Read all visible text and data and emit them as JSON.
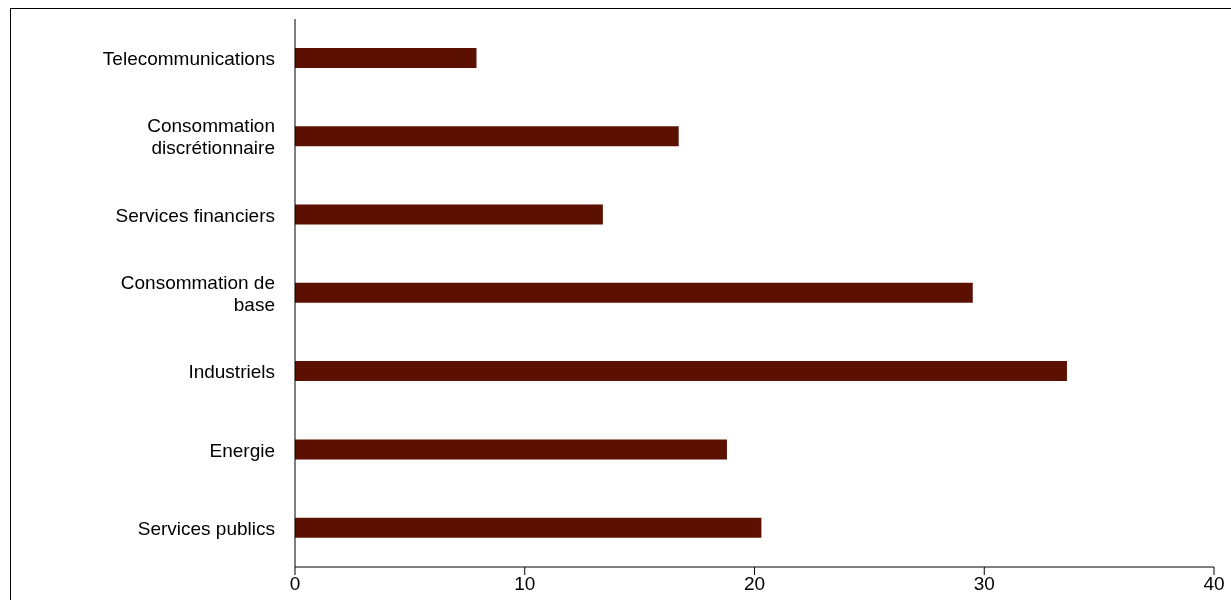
{
  "chart_data": {
    "type": "bar",
    "orientation": "horizontal",
    "categories": [
      "Telecommunications",
      "Consommation\ndiscrétionnaire",
      "Services financiers",
      "Consommation de\nbase",
      "Industriels",
      "Energie",
      "Services publics"
    ],
    "values": [
      7.9,
      16.7,
      13.4,
      29.5,
      33.6,
      18.8,
      20.3
    ],
    "color": "#5c1000",
    "xlim": [
      0,
      40
    ],
    "xticks": [
      0,
      10,
      20,
      30,
      40
    ],
    "grid": false,
    "legend": false
  }
}
